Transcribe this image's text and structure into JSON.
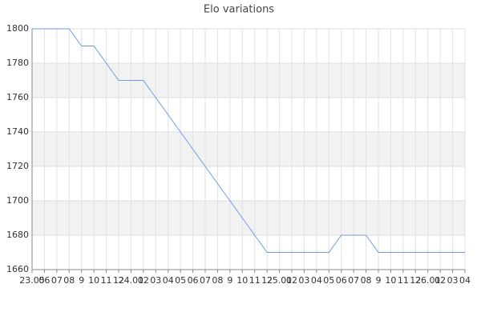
{
  "chart_data": {
    "type": "line",
    "title": "Elo variations",
    "categories": [
      "23.05",
      "06",
      "07",
      "08",
      "9",
      "10",
      "11",
      "12",
      "24.01",
      "02",
      "03",
      "04",
      "05",
      "06",
      "07",
      "08",
      "9",
      "10",
      "11",
      "12",
      "25.01",
      "02",
      "03",
      "04",
      "05",
      "06",
      "07",
      "08",
      "9",
      "10",
      "11",
      "12",
      "26.01",
      "02",
      "03",
      "04"
    ],
    "series": [
      {
        "name": "Elo",
        "color": "#6d9be0",
        "values": [
          1800,
          1800,
          1800,
          1800,
          1790,
          1790,
          1780,
          1770,
          1770,
          1770,
          1760,
          1750,
          1740,
          1730,
          1720,
          1710,
          1700,
          1690,
          1680,
          1670,
          1670,
          1670,
          1670,
          1670,
          1670,
          1680,
          1680,
          1680,
          1670,
          1670,
          1670,
          1670,
          1670,
          1670,
          1670,
          1670
        ]
      }
    ],
    "ylim": [
      1660,
      1800
    ],
    "yticks": [
      1660,
      1680,
      1700,
      1720,
      1740,
      1760,
      1780,
      1800
    ],
    "grid": true
  }
}
